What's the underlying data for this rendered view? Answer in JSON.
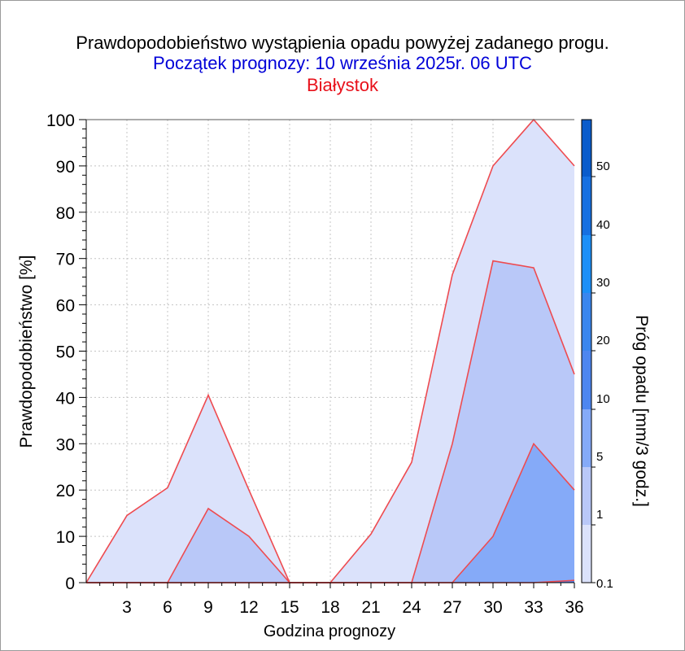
{
  "header": {
    "title": "Prawdopodobieństwo wystąpienia opadu powyżej zadanego progu.",
    "subtitle": "Początek prognozy: 10 września 2025r. 06 UTC",
    "location": "Białystok"
  },
  "chart_data": {
    "type": "area",
    "title": "Prawdopodobieństwo wystąpienia opadu powyżej zadanego progu.",
    "subtitle": "Początek prognozy: 10 września 2025r. 06 UTC",
    "location": "Białystok",
    "xlabel": "Godzina prognozy",
    "ylabel": "Prawdopodobieństwo [%]",
    "colorbar_label": "Próg opadu [mm/3 godz.]",
    "xlim": [
      0,
      36
    ],
    "ylim": [
      0,
      100
    ],
    "x": [
      0,
      3,
      6,
      9,
      12,
      15,
      18,
      21,
      24,
      27,
      30,
      33,
      36
    ],
    "x_ticks": [
      "3",
      "6",
      "9",
      "12",
      "15",
      "18",
      "21",
      "24",
      "27",
      "30",
      "33",
      "36"
    ],
    "y_ticks": [
      "0",
      "10",
      "20",
      "30",
      "40",
      "50",
      "60",
      "70",
      "80",
      "90",
      "100"
    ],
    "grid": true,
    "series": [
      {
        "threshold": 0.1,
        "color": "#dbe2fb",
        "values": [
          0,
          14.5,
          20.5,
          40.5,
          20,
          0,
          0,
          10.5,
          26,
          66.5,
          90,
          100,
          90
        ]
      },
      {
        "threshold": 1,
        "color": "#b9c8f8",
        "values": [
          0,
          0,
          0,
          16,
          10,
          0,
          0,
          0,
          0,
          30,
          69.5,
          68,
          45
        ]
      },
      {
        "threshold": 5,
        "color": "#85aaf8",
        "values": [
          0,
          0,
          0,
          0,
          0,
          0,
          0,
          0,
          0,
          0,
          10,
          30,
          20
        ]
      },
      {
        "threshold": 10,
        "color": "#4d86f0",
        "values": [
          0,
          0,
          0,
          0,
          0,
          0,
          0,
          0,
          0,
          0,
          0,
          0,
          0.5
        ]
      }
    ],
    "colorbar": {
      "labels": [
        "0.1",
        "1",
        "5",
        "10",
        "20",
        "30",
        "40",
        "50"
      ],
      "levels": [
        0.1,
        1,
        5,
        10,
        20,
        30,
        40,
        50,
        60
      ],
      "colors": [
        "#dbe2fb",
        "#b9c8f8",
        "#85aaf8",
        "#4d86f0",
        "#3a86ee",
        "#1c8ff7",
        "#1670e1",
        "#0a5ccc",
        "#003fb0"
      ]
    }
  }
}
